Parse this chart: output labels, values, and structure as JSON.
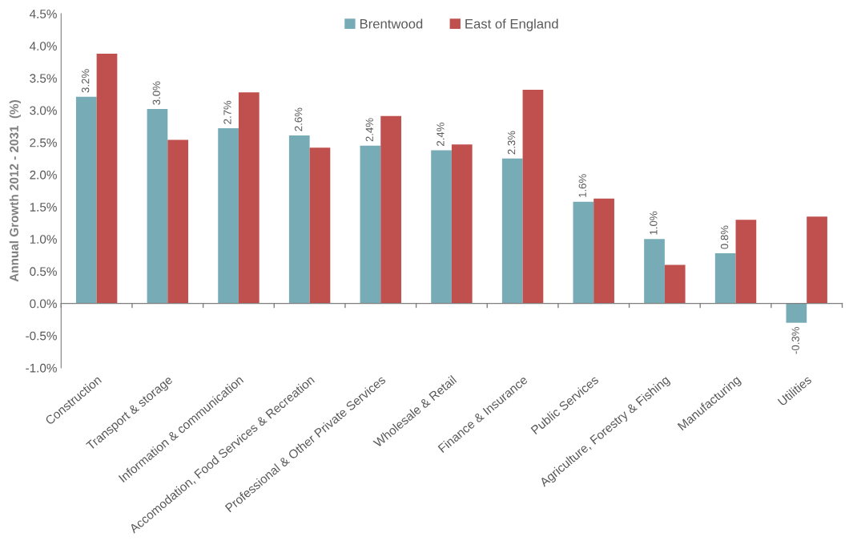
{
  "chart_data": {
    "type": "bar",
    "ylabel": "Annual Growth 2012 - 2031  (%)",
    "categories": [
      "Construction",
      "Transport & storage",
      "Information & communication",
      "Accomodation, Food Services & Recreation",
      "Professional & Other Private Services",
      "Wholesale & Retail",
      "Finance & Insurance",
      "Public Services",
      "Agriculture, Forestry & Fishing",
      "Manufacturing",
      "Utilities"
    ],
    "series": [
      {
        "name": "Brentwood",
        "color": "#77acb6",
        "values": [
          3.21,
          3.02,
          2.72,
          2.61,
          2.45,
          2.38,
          2.25,
          1.58,
          1.0,
          0.78,
          -0.3
        ],
        "value_labels": [
          "3.2%",
          "3.0%",
          "2.7%",
          "2.6%",
          "2.4%",
          "2.4%",
          "2.3%",
          "1.6%",
          "1.0%",
          "0.8%",
          "-0.3%"
        ]
      },
      {
        "name": "East of England",
        "color": "#c0504d",
        "values": [
          3.88,
          2.54,
          3.28,
          2.42,
          2.91,
          2.47,
          3.32,
          1.63,
          0.6,
          1.3,
          1.35
        ]
      }
    ],
    "ylim": [
      -1.0,
      4.5
    ],
    "yticks": [
      {
        "value": -1.0,
        "label": "-1.0%"
      },
      {
        "value": -0.5,
        "label": "-0.5%"
      },
      {
        "value": 0,
        "label": "0.0%"
      },
      {
        "value": 0.5,
        "label": "0.5%"
      },
      {
        "value": 1.0,
        "label": "1.0%"
      },
      {
        "value": 1.5,
        "label": "1.5%"
      },
      {
        "value": 2.0,
        "label": "2.0%"
      },
      {
        "value": 2.5,
        "label": "2.5%"
      },
      {
        "value": 3.0,
        "label": "3.0%"
      },
      {
        "value": 3.5,
        "label": "3.5%"
      },
      {
        "value": 4.0,
        "label": "4.0%"
      },
      {
        "value": 4.5,
        "label": "4.5%"
      }
    ],
    "legend": "top"
  }
}
